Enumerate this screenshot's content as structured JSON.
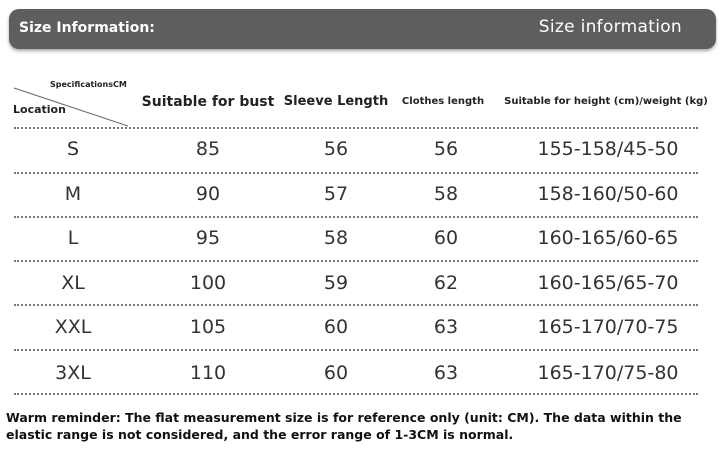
{
  "header": {
    "left_title": "Size Information:",
    "right_title": "Size information"
  },
  "table": {
    "corner_top": "SpecificationsCM",
    "corner_bottom": "Location",
    "columns": [
      "Suitable for bust",
      "Sleeve Length",
      "Clothes length",
      "Suitable for height (cm)/weight (kg)"
    ],
    "rows": [
      {
        "size": "S",
        "bust": "85",
        "sleeve": "56",
        "length": "56",
        "height_weight": "155-158/45-50"
      },
      {
        "size": "M",
        "bust": "90",
        "sleeve": "57",
        "length": "58",
        "height_weight": "158-160/50-60"
      },
      {
        "size": "L",
        "bust": "95",
        "sleeve": "58",
        "length": "60",
        "height_weight": "160-165/60-65"
      },
      {
        "size": "XL",
        "bust": "100",
        "sleeve": "59",
        "length": "62",
        "height_weight": "160-165/65-70"
      },
      {
        "size": "XXL",
        "bust": "105",
        "sleeve": "60",
        "length": "63",
        "height_weight": "165-170/70-75"
      },
      {
        "size": "3XL",
        "bust": "110",
        "sleeve": "60",
        "length": "63",
        "height_weight": "165-170/75-80"
      }
    ]
  },
  "footer": {
    "note": "Warm reminder: The flat measurement size is for reference only (unit: CM). The data within the elastic range is not considered, and the error range of 1-3CM is normal."
  }
}
